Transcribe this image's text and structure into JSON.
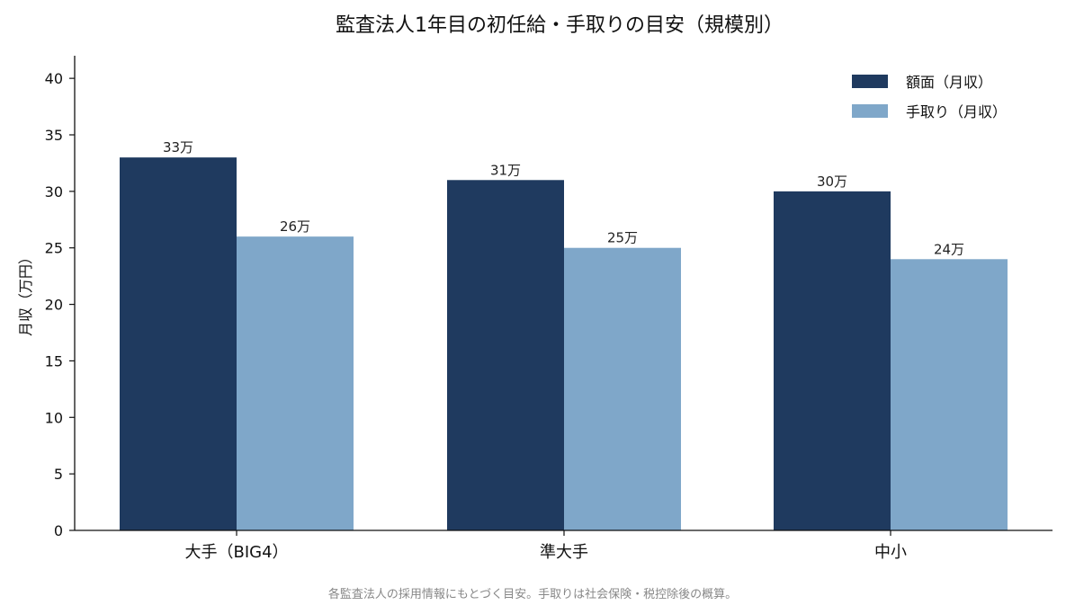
{
  "chart_data": {
    "type": "bar",
    "title": "監査法人1年目の初任給・手取りの目安（規模別）",
    "ylabel": "月収（万円）",
    "xlabel": "",
    "categories": [
      "大手（BIG4）",
      "準大手",
      "中小"
    ],
    "series": [
      {
        "name": "額面（月収）",
        "values": [
          33,
          31,
          30
        ],
        "labels": [
          "33万",
          "31万",
          "30万"
        ],
        "color": "#1f3a5f"
      },
      {
        "name": "手取り（月収）",
        "values": [
          26,
          25,
          24
        ],
        "labels": [
          "26万",
          "25万",
          "24万"
        ],
        "color": "#7fa7c9"
      }
    ],
    "ylim": [
      0,
      42
    ],
    "yticks": [
      "0",
      "5",
      "10",
      "15",
      "20",
      "25",
      "30",
      "35",
      "40"
    ],
    "grid": false,
    "legend_position": "top-right",
    "note": "各監査法人の採用情報にもとづく目安。手取りは社会保険・税控除後の概算。"
  }
}
